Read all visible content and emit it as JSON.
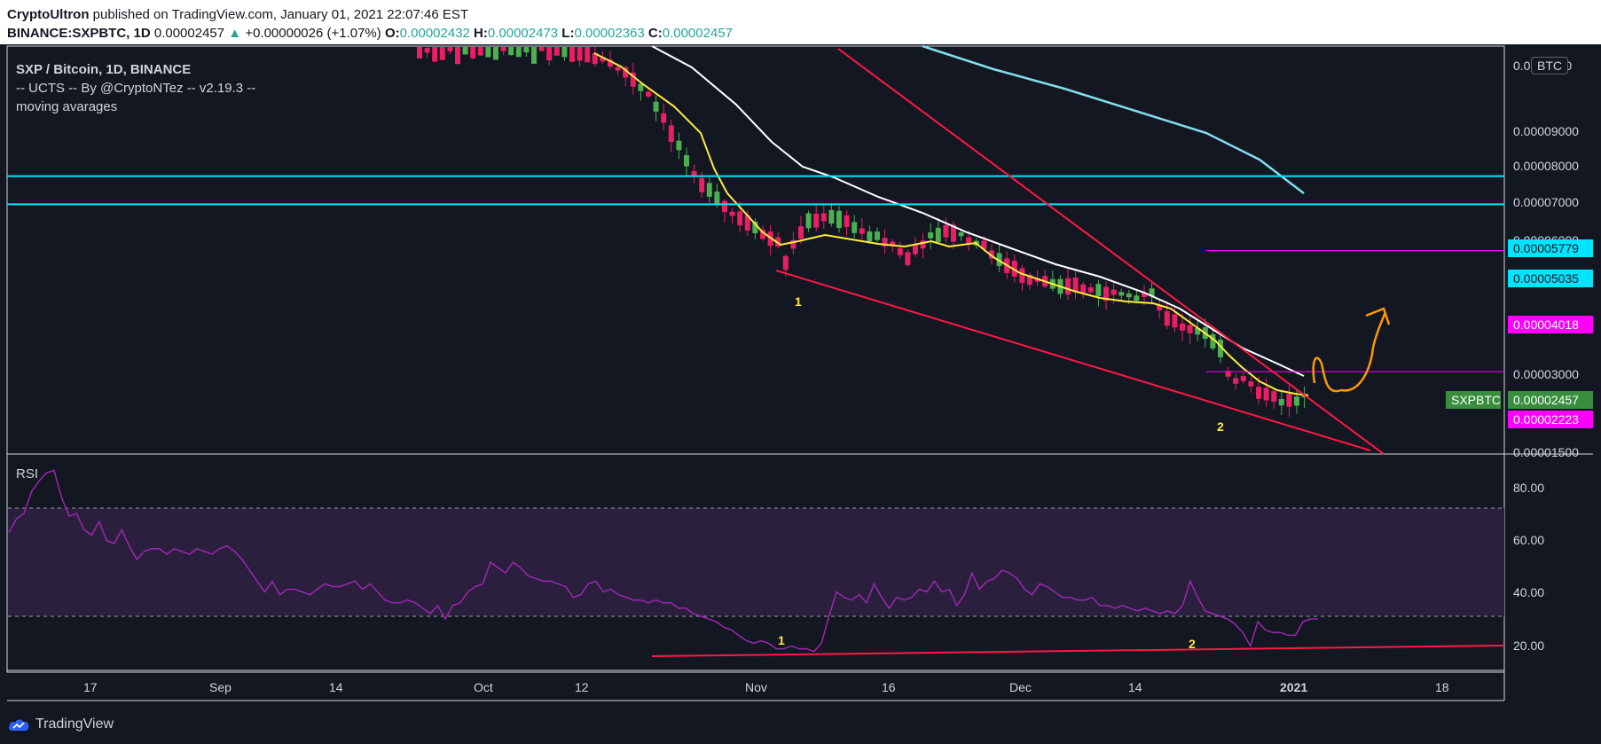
{
  "header": {
    "author": "CryptoUltron",
    "published": " published on TradingView.com, January 01, 2021 22:07:46 EST",
    "symbol": "BINANCE:SXPBTC, 1D",
    "last": "0.00002457",
    "arrow": "▲",
    "change": "+0.00000026 (+1.07%)",
    "o_label": "O:",
    "o_val": "0.00002432",
    "h_label": "H:",
    "h_val": "0.00002473",
    "l_label": "L:",
    "l_val": "0.00002363",
    "c_label": "C:",
    "c_val": "0.00002457"
  },
  "legend": {
    "title": "SXP / Bitcoin, 1D, BINANCE",
    "line2": "-- UCTS -- By @CryptoNTez -- v2.19.3 --",
    "line3": "moving avarages"
  },
  "currency_badge": "BTC",
  "rsi_label": "RSI",
  "footer": {
    "brand": "TradingView"
  },
  "colors": {
    "bg": "#131722",
    "up": "#26a69a",
    "candle_up": "#4caf50",
    "candle_down": "#e91e63",
    "ma_fast": "#ffeb3b",
    "ma_mid": "#ffffff",
    "ma_slow": "#80deea",
    "support": "#00e5ff",
    "magenta": "#ff00ff",
    "trend": "#ff1744",
    "rsi": "#9c27b0",
    "arrow": "#ff9800"
  },
  "chart_data": [
    {
      "type": "candlestick",
      "title": "SXP / Bitcoin, 1D, BINANCE",
      "y_scale": "log",
      "ylim": [
        1.5e-05,
        0.0001
      ],
      "x_ticks": [
        "17",
        "Sep",
        "14",
        "Oct",
        "12",
        "Nov",
        "16",
        "Dec",
        "14",
        "2021",
        "18"
      ],
      "y_ticks": [
        "0.0001000",
        "0.00009000",
        "0.00008000",
        "0.00007000",
        "0.00006000",
        "0.00003000",
        "0.00001500"
      ],
      "price_levels": [
        {
          "label": "0.00005779",
          "value": 5.779e-05,
          "color": "#00e5ff"
        },
        {
          "label": "0.00005035",
          "value": 5.035e-05,
          "color": "#00e5ff"
        },
        {
          "label": "0.00004018",
          "value": 4.018e-05,
          "color": "#ff00ff"
        },
        {
          "label": "0.00002223",
          "value": 2.223e-05,
          "color": "#ff00ff"
        }
      ],
      "last_price": {
        "symbol": "SXPBTC",
        "label": "0.00002457",
        "value": 2.457e-05
      },
      "annotations": [
        "1",
        "2"
      ],
      "ma_labels": []
    },
    {
      "type": "line",
      "title": "RSI",
      "ylim": [
        10,
        90
      ],
      "y_ticks": [
        "80.00",
        "60.00",
        "40.00",
        "20.00"
      ],
      "bands": [
        30,
        70
      ],
      "values": [
        61,
        66,
        68,
        76,
        80,
        83,
        84,
        74,
        67,
        68,
        62,
        60,
        65,
        58,
        57,
        62,
        56,
        51,
        54,
        55,
        55,
        53,
        55,
        54,
        53,
        55,
        54,
        53,
        55,
        56,
        54,
        51,
        47,
        43,
        39,
        43,
        38,
        40,
        40,
        39,
        38,
        40,
        42,
        41,
        41,
        42,
        43,
        40,
        42,
        39,
        36,
        35,
        35,
        36,
        35,
        33,
        31,
        34,
        29,
        34,
        35,
        39,
        41,
        42,
        50,
        48,
        46,
        50,
        48,
        45,
        44,
        43,
        43,
        42,
        41,
        37,
        38,
        42,
        43,
        39,
        40,
        38,
        37,
        36,
        36,
        35,
        36,
        35,
        35,
        33,
        33,
        31,
        30,
        29,
        28,
        26,
        25,
        23,
        21,
        20,
        21,
        20,
        18,
        18,
        19,
        18,
        18,
        17,
        20,
        30,
        39,
        37,
        36,
        38,
        35,
        42,
        37,
        33,
        37,
        36,
        37,
        40,
        39,
        43,
        39,
        40,
        34,
        38,
        46,
        40,
        43,
        44,
        47,
        46,
        44,
        40,
        38,
        42,
        41,
        39,
        37,
        37,
        36,
        36,
        37,
        34,
        34,
        33,
        34,
        33,
        32,
        33,
        32,
        31,
        32,
        31,
        34,
        43,
        37,
        32,
        31,
        30,
        29,
        27,
        24,
        19,
        28,
        25,
        24,
        24,
        23,
        23,
        28,
        29,
        29
      ]
    }
  ]
}
